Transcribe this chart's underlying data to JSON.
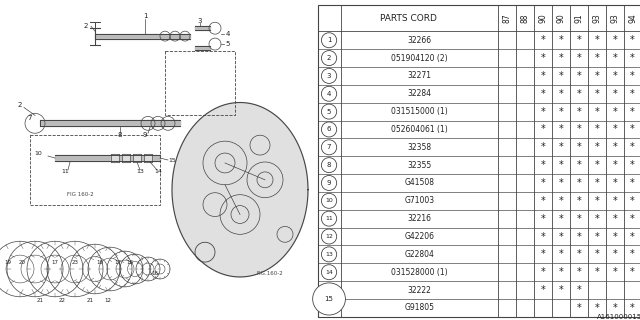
{
  "rows": [
    {
      "num": 1,
      "part": "32266",
      "marks": [
        0,
        0,
        1,
        1,
        1,
        1,
        1,
        1
      ]
    },
    {
      "num": 2,
      "part": "051904120 (2)",
      "marks": [
        0,
        0,
        1,
        1,
        1,
        1,
        1,
        1
      ]
    },
    {
      "num": 3,
      "part": "32271",
      "marks": [
        0,
        0,
        1,
        1,
        1,
        1,
        1,
        1
      ]
    },
    {
      "num": 4,
      "part": "32284",
      "marks": [
        0,
        0,
        1,
        1,
        1,
        1,
        1,
        1
      ]
    },
    {
      "num": 5,
      "part": "031515000 (1)",
      "marks": [
        0,
        0,
        1,
        1,
        1,
        1,
        1,
        1
      ]
    },
    {
      "num": 6,
      "part": "052604061 (1)",
      "marks": [
        0,
        0,
        1,
        1,
        1,
        1,
        1,
        1
      ]
    },
    {
      "num": 7,
      "part": "32358",
      "marks": [
        0,
        0,
        1,
        1,
        1,
        1,
        1,
        1
      ]
    },
    {
      "num": 8,
      "part": "32355",
      "marks": [
        0,
        0,
        1,
        1,
        1,
        1,
        1,
        1
      ]
    },
    {
      "num": 9,
      "part": "G41508",
      "marks": [
        0,
        0,
        1,
        1,
        1,
        1,
        1,
        1
      ]
    },
    {
      "num": 10,
      "part": "G71003",
      "marks": [
        0,
        0,
        1,
        1,
        1,
        1,
        1,
        1
      ]
    },
    {
      "num": 11,
      "part": "32216",
      "marks": [
        0,
        0,
        1,
        1,
        1,
        1,
        1,
        1
      ]
    },
    {
      "num": 12,
      "part": "G42206",
      "marks": [
        0,
        0,
        1,
        1,
        1,
        1,
        1,
        1
      ]
    },
    {
      "num": 13,
      "part": "G22804",
      "marks": [
        0,
        0,
        1,
        1,
        1,
        1,
        1,
        1
      ]
    },
    {
      "num": 14,
      "part": "031528000 (1)",
      "marks": [
        0,
        0,
        1,
        1,
        1,
        1,
        1,
        1
      ]
    },
    {
      "num": 15,
      "part": "32222",
      "marks": [
        0,
        0,
        1,
        1,
        1,
        0,
        0,
        0
      ]
    },
    {
      "num": 15,
      "part": "G91805",
      "marks": [
        0,
        0,
        0,
        0,
        1,
        1,
        1,
        1
      ]
    }
  ],
  "year_cols": [
    "87",
    "88",
    "90",
    "90",
    "91",
    "93",
    "93",
    "94"
  ],
  "watermark": "A161000015",
  "bg_color": "#ffffff",
  "line_color": "#444444",
  "text_color": "#222222",
  "grid_color": "#888888"
}
